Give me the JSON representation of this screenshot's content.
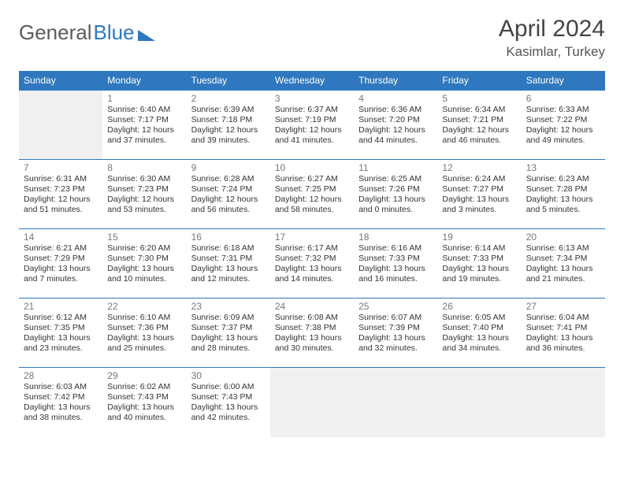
{
  "logo": {
    "part1": "General",
    "part2": "Blue"
  },
  "title": "April 2024",
  "location": "Kasimlar, Turkey",
  "header_bg": "#2f78bf",
  "header_fg": "#ffffff",
  "row_border": "#2f78bf",
  "empty_bg": "#f0f0f0",
  "day_headers": [
    "Sunday",
    "Monday",
    "Tuesday",
    "Wednesday",
    "Thursday",
    "Friday",
    "Saturday"
  ],
  "weeks": [
    [
      null,
      {
        "n": "1",
        "sr": "6:40 AM",
        "ss": "7:17 PM",
        "dl": "12 hours and 37 minutes."
      },
      {
        "n": "2",
        "sr": "6:39 AM",
        "ss": "7:18 PM",
        "dl": "12 hours and 39 minutes."
      },
      {
        "n": "3",
        "sr": "6:37 AM",
        "ss": "7:19 PM",
        "dl": "12 hours and 41 minutes."
      },
      {
        "n": "4",
        "sr": "6:36 AM",
        "ss": "7:20 PM",
        "dl": "12 hours and 44 minutes."
      },
      {
        "n": "5",
        "sr": "6:34 AM",
        "ss": "7:21 PM",
        "dl": "12 hours and 46 minutes."
      },
      {
        "n": "6",
        "sr": "6:33 AM",
        "ss": "7:22 PM",
        "dl": "12 hours and 49 minutes."
      }
    ],
    [
      {
        "n": "7",
        "sr": "6:31 AM",
        "ss": "7:23 PM",
        "dl": "12 hours and 51 minutes."
      },
      {
        "n": "8",
        "sr": "6:30 AM",
        "ss": "7:23 PM",
        "dl": "12 hours and 53 minutes."
      },
      {
        "n": "9",
        "sr": "6:28 AM",
        "ss": "7:24 PM",
        "dl": "12 hours and 56 minutes."
      },
      {
        "n": "10",
        "sr": "6:27 AM",
        "ss": "7:25 PM",
        "dl": "12 hours and 58 minutes."
      },
      {
        "n": "11",
        "sr": "6:25 AM",
        "ss": "7:26 PM",
        "dl": "13 hours and 0 minutes."
      },
      {
        "n": "12",
        "sr": "6:24 AM",
        "ss": "7:27 PM",
        "dl": "13 hours and 3 minutes."
      },
      {
        "n": "13",
        "sr": "6:23 AM",
        "ss": "7:28 PM",
        "dl": "13 hours and 5 minutes."
      }
    ],
    [
      {
        "n": "14",
        "sr": "6:21 AM",
        "ss": "7:29 PM",
        "dl": "13 hours and 7 minutes."
      },
      {
        "n": "15",
        "sr": "6:20 AM",
        "ss": "7:30 PM",
        "dl": "13 hours and 10 minutes."
      },
      {
        "n": "16",
        "sr": "6:18 AM",
        "ss": "7:31 PM",
        "dl": "13 hours and 12 minutes."
      },
      {
        "n": "17",
        "sr": "6:17 AM",
        "ss": "7:32 PM",
        "dl": "13 hours and 14 minutes."
      },
      {
        "n": "18",
        "sr": "6:16 AM",
        "ss": "7:33 PM",
        "dl": "13 hours and 16 minutes."
      },
      {
        "n": "19",
        "sr": "6:14 AM",
        "ss": "7:33 PM",
        "dl": "13 hours and 19 minutes."
      },
      {
        "n": "20",
        "sr": "6:13 AM",
        "ss": "7:34 PM",
        "dl": "13 hours and 21 minutes."
      }
    ],
    [
      {
        "n": "21",
        "sr": "6:12 AM",
        "ss": "7:35 PM",
        "dl": "13 hours and 23 minutes."
      },
      {
        "n": "22",
        "sr": "6:10 AM",
        "ss": "7:36 PM",
        "dl": "13 hours and 25 minutes."
      },
      {
        "n": "23",
        "sr": "6:09 AM",
        "ss": "7:37 PM",
        "dl": "13 hours and 28 minutes."
      },
      {
        "n": "24",
        "sr": "6:08 AM",
        "ss": "7:38 PM",
        "dl": "13 hours and 30 minutes."
      },
      {
        "n": "25",
        "sr": "6:07 AM",
        "ss": "7:39 PM",
        "dl": "13 hours and 32 minutes."
      },
      {
        "n": "26",
        "sr": "6:05 AM",
        "ss": "7:40 PM",
        "dl": "13 hours and 34 minutes."
      },
      {
        "n": "27",
        "sr": "6:04 AM",
        "ss": "7:41 PM",
        "dl": "13 hours and 36 minutes."
      }
    ],
    [
      {
        "n": "28",
        "sr": "6:03 AM",
        "ss": "7:42 PM",
        "dl": "13 hours and 38 minutes."
      },
      {
        "n": "29",
        "sr": "6:02 AM",
        "ss": "7:43 PM",
        "dl": "13 hours and 40 minutes."
      },
      {
        "n": "30",
        "sr": "6:00 AM",
        "ss": "7:43 PM",
        "dl": "13 hours and 42 minutes."
      },
      null,
      null,
      null,
      null
    ]
  ],
  "labels": {
    "sunrise": "Sunrise:",
    "sunset": "Sunset:",
    "daylight": "Daylight:"
  }
}
